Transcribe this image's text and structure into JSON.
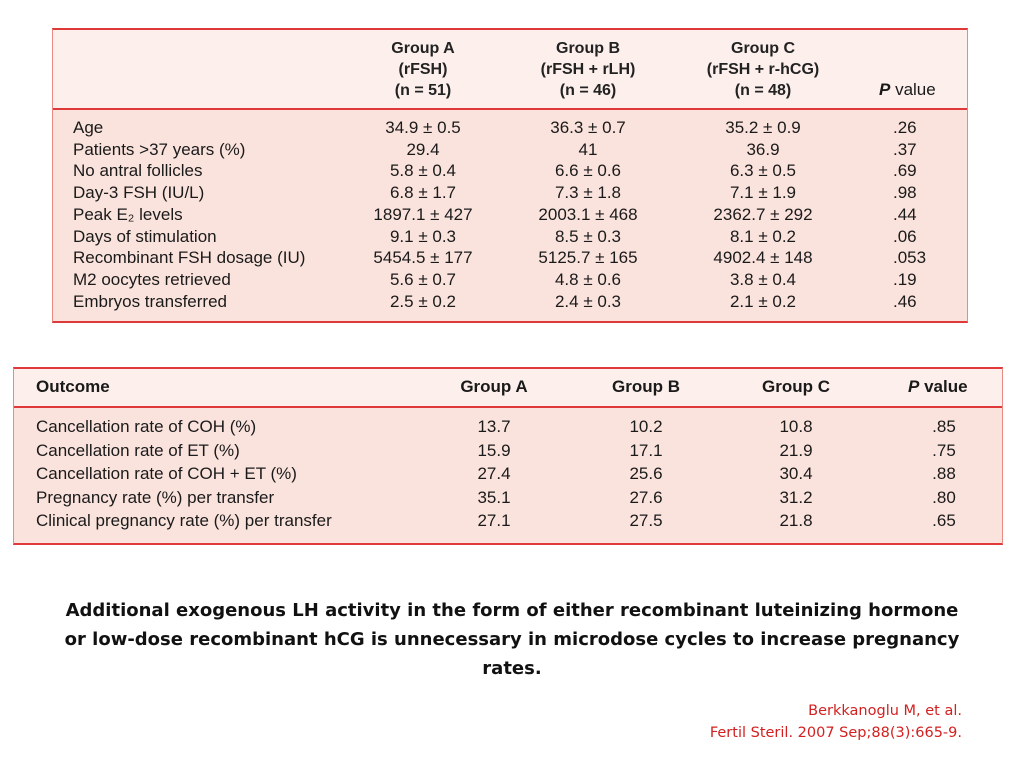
{
  "table1": {
    "headers": [
      {
        "lines": [
          "Group A",
          "(rFSH)",
          "(n = 51)"
        ]
      },
      {
        "lines": [
          "Group B",
          "(rFSH + rLH)",
          "(n = 46)"
        ]
      },
      {
        "lines": [
          "Group C",
          "(rFSH + r-hCG)",
          "(n = 48)"
        ]
      }
    ],
    "p_head_bold": "P",
    "p_head_rest": " value",
    "rows": [
      {
        "label": "Age",
        "a": "34.9 ± 0.5",
        "b": "36.3 ± 0.7",
        "c": "35.2 ± 0.9",
        "p": ".26"
      },
      {
        "label": "Patients >37 years (%)",
        "a": "29.4",
        "b": "41",
        "c": "36.9",
        "p": ".37"
      },
      {
        "label": "No antral follicles",
        "a": "5.8 ± 0.4",
        "b": "6.6 ± 0.6",
        "c": "6.3 ± 0.5",
        "p": ".69"
      },
      {
        "label": "Day-3 FSH (IU/L)",
        "a": "6.8 ± 1.7",
        "b": "7.3 ± 1.8",
        "c": "7.1 ± 1.9",
        "p": ".98"
      },
      {
        "label": "Peak E₂ levels",
        "a": "1897.1 ± 427",
        "b": "2003.1 ± 468",
        "c": "2362.7 ± 292",
        "p": ".44"
      },
      {
        "label": "Days of stimulation",
        "a": "9.1 ± 0.3",
        "b": "8.5 ± 0.3",
        "c": "8.1 ± 0.2",
        "p": ".06"
      },
      {
        "label": "Recombinant FSH dosage (IU)",
        "a": "5454.5 ± 177",
        "b": "5125.7 ± 165",
        "c": "4902.4 ± 148",
        "p": ".053"
      },
      {
        "label": "M2 oocytes retrieved",
        "a": "5.6 ± 0.7",
        "b": "4.8 ± 0.6",
        "c": "3.8 ± 0.4",
        "p": ".19"
      },
      {
        "label": "Embryos transferred",
        "a": "2.5 ± 0.2",
        "b": "2.4 ± 0.3",
        "c": "2.1 ± 0.2",
        "p": ".46"
      }
    ]
  },
  "table2": {
    "headers": {
      "outcome": "Outcome",
      "a": "Group A",
      "b": "Group B",
      "c": "Group C",
      "p_bold": "P",
      "p_rest": " value"
    },
    "rows": [
      {
        "label": "Cancellation rate of COH (%)",
        "a": "13.7",
        "b": "10.2",
        "c": "10.8",
        "p": ".85"
      },
      {
        "label": "Cancellation rate of ET (%)",
        "a": "15.9",
        "b": "17.1",
        "c": "21.9",
        "p": ".75"
      },
      {
        "label": "Cancellation rate of COH + ET (%)",
        "a": "27.4",
        "b": "25.6",
        "c": "30.4",
        "p": ".88"
      },
      {
        "label": "Pregnancy rate (%) per transfer",
        "a": "35.1",
        "b": "27.6",
        "c": "31.2",
        "p": ".80"
      },
      {
        "label": "Clinical pregnancy rate (%) per transfer",
        "a": "27.1",
        "b": "27.5",
        "c": "21.8",
        "p": ".65"
      }
    ]
  },
  "caption": "Additional exogenous LH activity in the form of either recombinant luteinizing hormone or low-dose recombinant hCG is unnecessary in microdose cycles to increase pregnancy rates.",
  "reference": {
    "line1": "Berkkanoglu M, et al.",
    "line2": "Fertil Steril. 2007 Sep;88(3):665-9."
  },
  "colors": {
    "accent": "#e0393a",
    "table_bg": "#fbe3dd",
    "reference_text": "#d32020"
  }
}
